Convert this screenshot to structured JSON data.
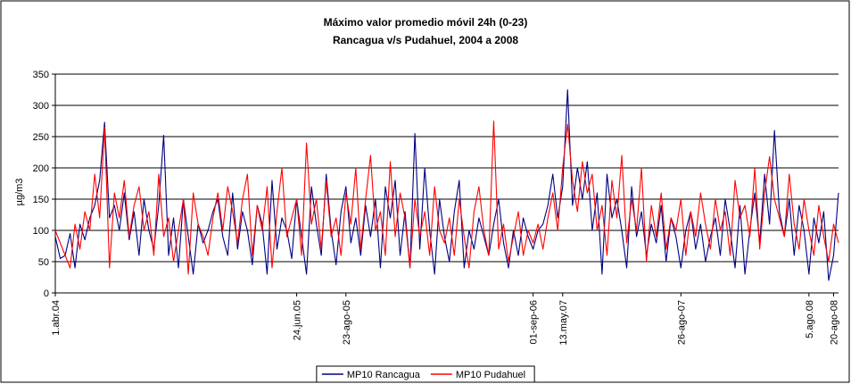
{
  "chart_data": {
    "type": "line",
    "title": "Máximo valor promedio móvil 24h (0-23)",
    "subtitle": "Rancagua v/s Pudahuel, 2004 a 2008",
    "y_label": "µg/m3",
    "categories": [
      "1.abr.04",
      null,
      null,
      null,
      null,
      null,
      null,
      null,
      null,
      null,
      null,
      null,
      null,
      null,
      null,
      null,
      null,
      null,
      null,
      null,
      null,
      null,
      null,
      null,
      null,
      null,
      null,
      null,
      null,
      null,
      null,
      null,
      null,
      null,
      null,
      null,
      null,
      null,
      null,
      null,
      null,
      null,
      null,
      null,
      null,
      null,
      null,
      null,
      null,
      "24.jun.05",
      null,
      null,
      null,
      null,
      null,
      null,
      null,
      null,
      null,
      "23-ago-05",
      null,
      null,
      null,
      null,
      null,
      null,
      null,
      null,
      null,
      null,
      null,
      null,
      null,
      null,
      null,
      null,
      null,
      null,
      null,
      null,
      null,
      null,
      null,
      null,
      null,
      null,
      null,
      null,
      null,
      null,
      null,
      null,
      null,
      null,
      null,
      null,
      null,
      "01-sep-06",
      null,
      null,
      null,
      null,
      null,
      "13.may.07",
      null,
      null,
      null,
      null,
      null,
      null,
      null,
      null,
      null,
      null,
      null,
      null,
      null,
      null,
      null,
      null,
      null,
      null,
      null,
      null,
      null,
      null,
      null,
      "26-ago-07",
      null,
      null,
      null,
      null,
      null,
      null,
      null,
      null,
      null,
      null,
      null,
      null,
      null,
      null,
      null,
      null,
      null,
      null,
      null,
      null,
      null,
      null,
      null,
      null,
      null,
      "5.ago.08",
      null,
      null,
      null,
      null,
      "20-ago-08",
      null
    ],
    "series": [
      {
        "name": "MP10 Rancagua",
        "color": "#000080",
        "values": [
          90,
          55,
          60,
          95,
          40,
          110,
          85,
          120,
          140,
          180,
          273,
          120,
          140,
          100,
          160,
          85,
          130,
          60,
          150,
          100,
          70,
          140,
          252,
          60,
          120,
          40,
          150,
          90,
          30,
          110,
          80,
          100,
          130,
          150,
          90,
          60,
          160,
          70,
          130,
          100,
          45,
          140,
          110,
          30,
          180,
          70,
          120,
          100,
          55,
          150,
          90,
          30,
          170,
          110,
          60,
          190,
          100,
          45,
          130,
          170,
          80,
          120,
          60,
          140,
          90,
          150,
          40,
          170,
          120,
          180,
          60,
          130,
          40,
          255,
          70,
          200,
          100,
          30,
          150,
          90,
          50,
          130,
          180,
          40,
          100,
          70,
          120,
          90,
          60,
          110,
          150,
          80,
          40,
          100,
          60,
          120,
          90,
          70,
          100,
          110,
          140,
          190,
          120,
          170,
          325,
          140,
          200,
          150,
          210,
          100,
          160,
          30,
          190,
          120,
          150,
          100,
          40,
          170,
          90,
          130,
          60,
          110,
          80,
          140,
          50,
          120,
          90,
          40,
          100,
          130,
          70,
          110,
          50,
          90,
          120,
          60,
          150,
          100,
          40,
          140,
          30,
          100,
          160,
          80,
          190,
          110,
          260,
          130,
          90,
          150,
          60,
          140,
          100,
          30,
          120,
          80,
          130,
          20,
          60,
          160
        ]
      },
      {
        "name": "MP10 Pudahuel",
        "color": "#ff0000",
        "values": [
          100,
          80,
          60,
          40,
          110,
          70,
          130,
          100,
          190,
          120,
          265,
          40,
          160,
          120,
          180,
          90,
          140,
          170,
          100,
          130,
          60,
          190,
          90,
          120,
          50,
          100,
          150,
          30,
          160,
          110,
          90,
          60,
          120,
          160,
          100,
          170,
          130,
          80,
          150,
          190,
          60,
          140,
          100,
          170,
          40,
          130,
          200,
          90,
          120,
          150,
          60,
          240,
          110,
          150,
          70,
          180,
          90,
          120,
          60,
          160,
          110,
          200,
          70,
          150,
          220,
          100,
          130,
          60,
          210,
          90,
          160,
          120,
          40,
          150,
          90,
          130,
          60,
          170,
          100,
          80,
          120,
          60,
          150,
          90,
          40,
          130,
          170,
          100,
          60,
          275,
          70,
          110,
          50,
          90,
          130,
          60,
          100,
          80,
          110,
          70,
          120,
          160,
          100,
          200,
          270,
          180,
          130,
          210,
          160,
          190,
          100,
          140,
          60,
          180,
          120,
          220,
          80,
          150,
          100,
          200,
          50,
          140,
          90,
          160,
          70,
          120,
          100,
          150,
          60,
          130,
          90,
          160,
          110,
          70,
          150,
          100,
          130,
          60,
          180,
          120,
          140,
          90,
          200,
          70,
          160,
          218,
          150,
          120,
          90,
          190,
          110,
          70,
          150,
          100,
          60,
          140,
          90,
          50,
          110,
          80
        ]
      }
    ],
    "ylim": [
      0,
      350
    ],
    "yticks": [
      0,
      50,
      100,
      150,
      200,
      250,
      300,
      350
    ],
    "grid": true,
    "legend": "bottom"
  }
}
